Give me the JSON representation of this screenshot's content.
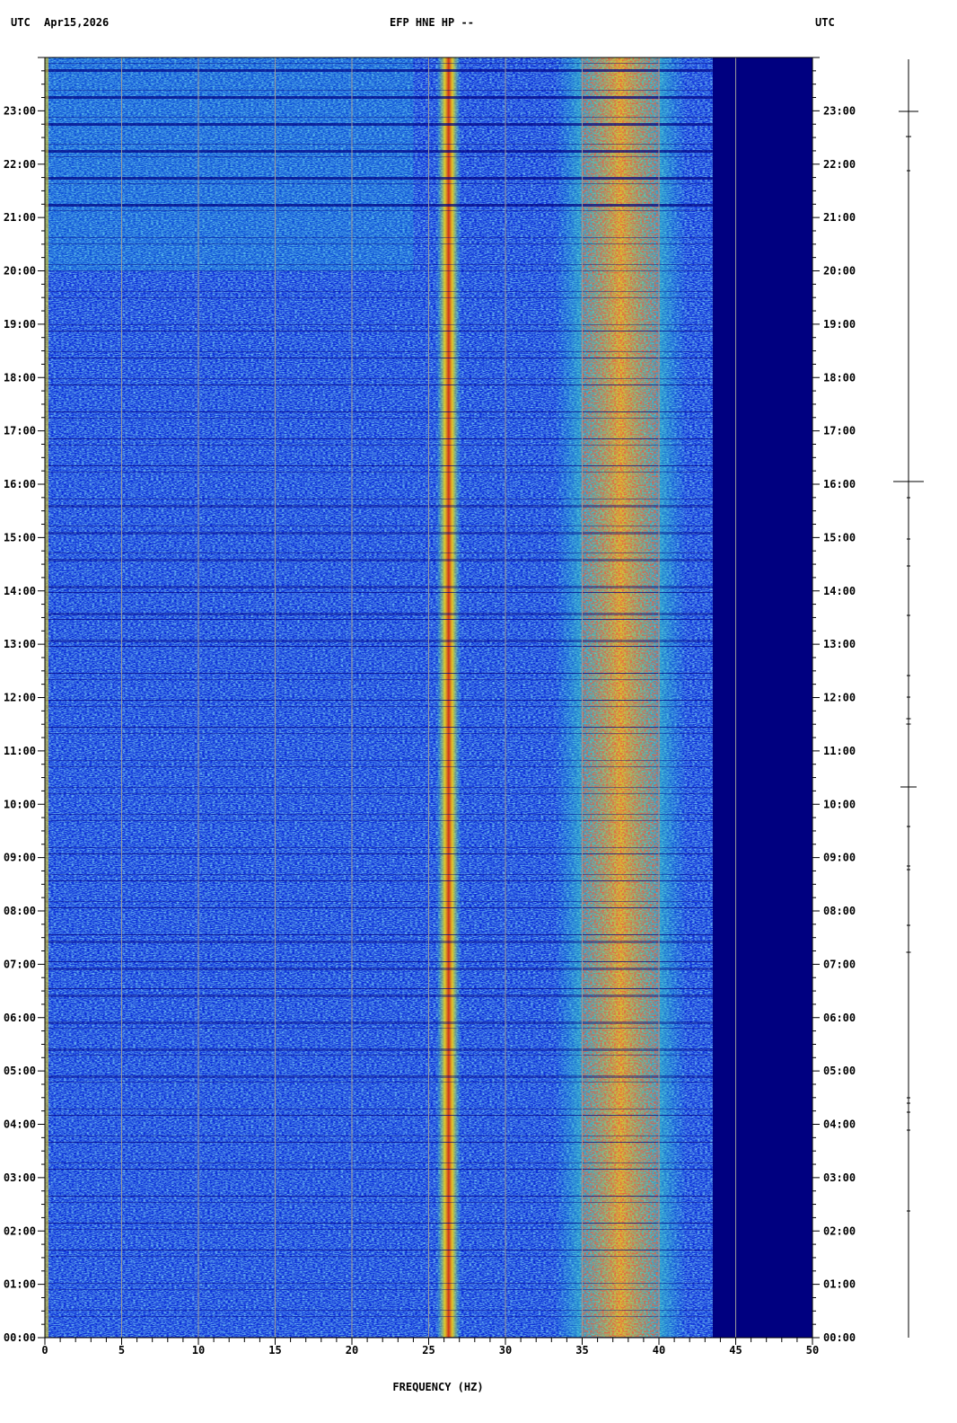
{
  "header": {
    "left_tz": "UTC",
    "date": "Apr15,2026",
    "station": "EFP HNE HP --",
    "right_tz": "UTC"
  },
  "chart_data": {
    "type": "heatmap",
    "title": "EFP HNE HP --",
    "xlabel": "FREQUENCY (HZ)",
    "ylabel": "",
    "xlim": [
      0,
      50
    ],
    "x_ticks": [
      "0",
      "5",
      "10",
      "15",
      "20",
      "25",
      "30",
      "35",
      "40",
      "45",
      "50"
    ],
    "y_ticks": [
      "00:00",
      "01:00",
      "02:00",
      "03:00",
      "04:00",
      "05:00",
      "06:00",
      "07:00",
      "08:00",
      "09:00",
      "10:00",
      "11:00",
      "12:00",
      "13:00",
      "14:00",
      "15:00",
      "16:00",
      "17:00",
      "18:00",
      "19:00",
      "20:00",
      "21:00",
      "22:00",
      "23:00"
    ],
    "ylim_hours": [
      0,
      24
    ],
    "grid": true,
    "colors": {
      "background": "#000080",
      "low": "#0a2bd8",
      "mid": "#1fd0d8",
      "high": "#e8d020",
      "peak": "#c81010",
      "grid": "#9a9a9a"
    },
    "features": [
      {
        "name": "persistent line",
        "freq_hz": 26.3
      },
      {
        "name": "broad energy band",
        "freq_hz_range": [
          34.5,
          40.5
        ]
      },
      {
        "name": "spectral cutoff",
        "freq_hz": 43.5
      }
    ]
  }
}
